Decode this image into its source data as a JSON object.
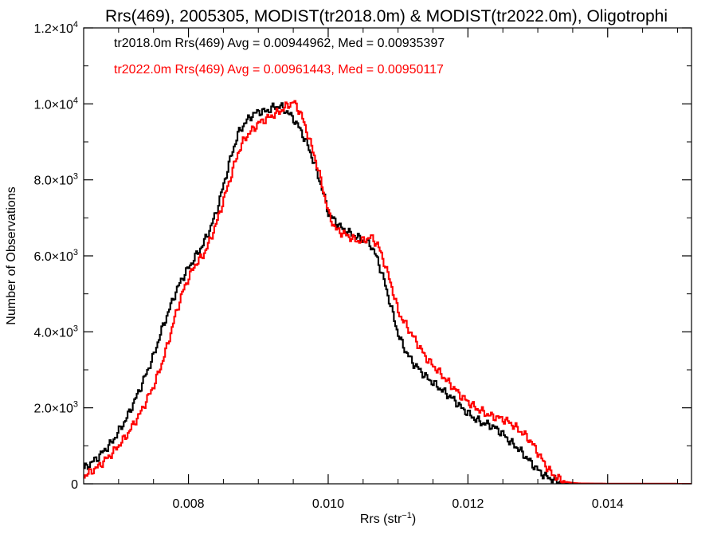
{
  "chart_data": {
    "type": "line",
    "title": "Rrs(469), 2005305, MODIST(tr2018.0m) & MODIST(tr2022.0m), Oligotrophi",
    "xlabel": "Rrs (str",
    "xlabel_sup": "−1",
    "xlabel_end": ")",
    "ylabel": "Number of Observations",
    "xlim": [
      0.0065,
      0.0152
    ],
    "ylim": [
      0,
      12000
    ],
    "x_ticks": [
      {
        "value": 0.008,
        "label": "0.008"
      },
      {
        "value": 0.01,
        "label": "0.010"
      },
      {
        "value": 0.012,
        "label": "0.012"
      },
      {
        "value": 0.014,
        "label": "0.014"
      }
    ],
    "y_ticks": [
      {
        "value": 0,
        "mant": "0",
        "exp": ""
      },
      {
        "value": 2000,
        "mant": "2.0×10",
        "exp": "3"
      },
      {
        "value": 4000,
        "mant": "4.0×10",
        "exp": "3"
      },
      {
        "value": 6000,
        "mant": "6.0×10",
        "exp": "3"
      },
      {
        "value": 8000,
        "mant": "8.0×10",
        "exp": "3"
      },
      {
        "value": 10000,
        "mant": "1.0×10",
        "exp": "4"
      },
      {
        "value": 12000,
        "mant": "1.2×10",
        "exp": "4"
      }
    ],
    "annotations": [
      {
        "text": "tr2018.0m Rrs(469) Avg = 0.00944962, Med = 0.00935397",
        "color": "#000000"
      },
      {
        "text": "tr2022.0m Rrs(469) Avg = 0.00961443, Med = 0.00950117",
        "color": "#ff0000"
      }
    ],
    "series": [
      {
        "color": "#000000",
        "x": [
          0.0065,
          0.0067,
          0.0069,
          0.0071,
          0.0073,
          0.0075,
          0.0076,
          0.0077,
          0.0078,
          0.0079,
          0.008,
          0.0081,
          0.0082,
          0.0083,
          0.0084,
          0.0085,
          0.0086,
          0.0087,
          0.0088,
          0.0089,
          0.009,
          0.0091,
          0.0092,
          0.0093,
          0.0094,
          0.0095,
          0.0096,
          0.0097,
          0.0098,
          0.0099,
          0.01,
          0.0101,
          0.0102,
          0.0103,
          0.0104,
          0.0105,
          0.0106,
          0.0107,
          0.0108,
          0.0109,
          0.011,
          0.0111,
          0.0112,
          0.0113,
          0.0114,
          0.0115,
          0.0116,
          0.0117,
          0.0118,
          0.0119,
          0.012,
          0.0121,
          0.0122,
          0.0123,
          0.0124,
          0.0125,
          0.0126,
          0.0127,
          0.0128,
          0.0129,
          0.013,
          0.0131,
          0.0132,
          0.0133,
          0.0134,
          0.0135,
          0.0136,
          0.0138,
          0.014,
          0.0145,
          0.0152
        ],
        "y": [
          400,
          700,
          1100,
          1700,
          2500,
          3400,
          4000,
          4500,
          5000,
          5400,
          5700,
          6000,
          6300,
          6700,
          7200,
          7900,
          8600,
          9200,
          9500,
          9700,
          9800,
          9800,
          9900,
          9950,
          9800,
          9600,
          9300,
          8900,
          8400,
          7800,
          7100,
          6900,
          6700,
          6600,
          6500,
          6400,
          6300,
          5900,
          5300,
          4600,
          3900,
          3500,
          3200,
          3000,
          2800,
          2650,
          2500,
          2350,
          2200,
          2000,
          1850,
          1700,
          1600,
          1550,
          1450,
          1300,
          1100,
          950,
          750,
          550,
          350,
          200,
          120,
          60,
          30,
          15,
          8,
          4,
          2,
          1,
          0
        ]
      },
      {
        "color": "#ff0000",
        "x": [
          0.0065,
          0.0067,
          0.0069,
          0.0071,
          0.0073,
          0.0075,
          0.0076,
          0.0077,
          0.0078,
          0.0079,
          0.008,
          0.0081,
          0.0082,
          0.0083,
          0.0084,
          0.0085,
          0.0086,
          0.0087,
          0.0088,
          0.0089,
          0.009,
          0.0091,
          0.0092,
          0.0093,
          0.0094,
          0.0095,
          0.0096,
          0.0097,
          0.0098,
          0.0099,
          0.01,
          0.0101,
          0.0102,
          0.0103,
          0.0104,
          0.0105,
          0.0106,
          0.0107,
          0.0108,
          0.0109,
          0.011,
          0.0111,
          0.0112,
          0.0113,
          0.0114,
          0.0115,
          0.0116,
          0.0117,
          0.0118,
          0.0119,
          0.012,
          0.0121,
          0.0122,
          0.0123,
          0.0124,
          0.0125,
          0.0126,
          0.0127,
          0.0128,
          0.0129,
          0.013,
          0.0131,
          0.0132,
          0.0133,
          0.0134,
          0.0135,
          0.0136,
          0.0138,
          0.014,
          0.0145,
          0.0152
        ],
        "y": [
          200,
          450,
          800,
          1250,
          1850,
          2600,
          3100,
          3700,
          4400,
          5000,
          5450,
          5800,
          6000,
          6400,
          6900,
          7500,
          8100,
          8700,
          9100,
          9300,
          9500,
          9600,
          9700,
          9800,
          9950,
          10050,
          9750,
          9200,
          8600,
          7900,
          7100,
          6700,
          6600,
          6500,
          6400,
          6400,
          6500,
          6300,
          5800,
          5200,
          4500,
          4200,
          3900,
          3600,
          3300,
          3100,
          2900,
          2700,
          2500,
          2300,
          2150,
          2000,
          1900,
          1800,
          1750,
          1700,
          1600,
          1450,
          1300,
          1100,
          800,
          500,
          250,
          120,
          50,
          20,
          10,
          5,
          2,
          1,
          0
        ]
      }
    ]
  }
}
